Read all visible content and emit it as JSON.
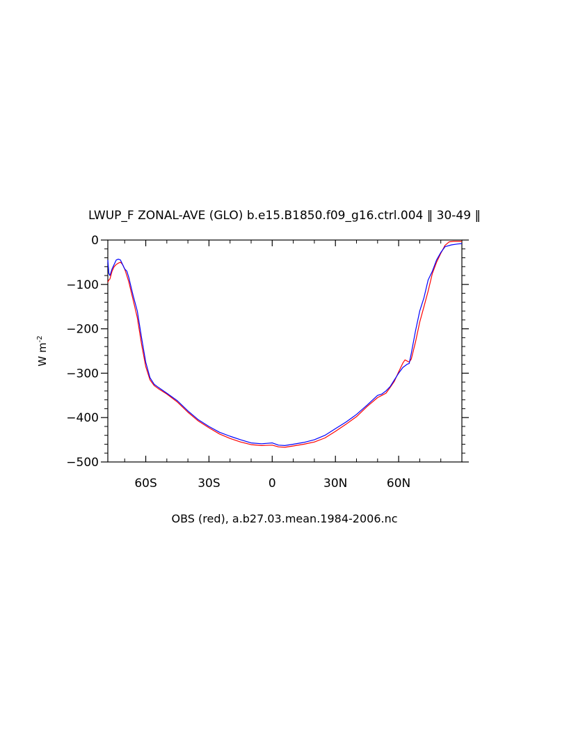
{
  "chart_data": {
    "type": "line",
    "title": "LWUP_F ZONAL-AVE (GLO) b.e15.B1850.f09_g16.ctrl.004 ‖ 30-49 ‖",
    "caption": "OBS (red), a.b27.03.mean.1984-2006.nc",
    "ylabel": "W m",
    "ylabel_superscript": "-2",
    "xlim": [
      -78,
      90
    ],
    "ylim": [
      -500,
      0
    ],
    "x_ticks": [
      -60,
      -30,
      0,
      30,
      60
    ],
    "x_tick_labels": [
      "60S",
      "30S",
      "0",
      "30N",
      "60N"
    ],
    "y_ticks": [
      0,
      -100,
      -200,
      -300,
      -400,
      -500
    ],
    "y_tick_labels": [
      "0",
      "−100",
      "−200",
      "−300",
      "−400",
      "−500"
    ],
    "colors": {
      "model": "#0000ff",
      "obs": "#ff0000"
    },
    "series": [
      {
        "key": "model",
        "color": "#0000ff",
        "x": [
          -78,
          -77.5,
          -77,
          -76,
          -75,
          -74,
          -73,
          -72,
          -71,
          -70,
          -69,
          -68,
          -67,
          -66,
          -64,
          -62,
          -60,
          -58,
          -56,
          -54,
          -50,
          -45,
          -40,
          -35,
          -30,
          -25,
          -20,
          -15,
          -10,
          -5,
          0,
          3,
          6,
          10,
          15,
          20,
          25,
          30,
          35,
          40,
          45,
          50,
          52,
          54,
          56,
          58,
          60,
          62,
          64,
          65,
          66,
          68,
          70,
          72,
          74,
          76,
          78,
          80,
          82,
          85,
          88,
          90
        ],
        "y": [
          -45,
          -75,
          -80,
          -65,
          -55,
          -45,
          -43,
          -45,
          -55,
          -65,
          -70,
          -85,
          -105,
          -125,
          -160,
          -220,
          -275,
          -310,
          -325,
          -332,
          -345,
          -362,
          -385,
          -405,
          -420,
          -433,
          -442,
          -450,
          -457,
          -459,
          -457,
          -462,
          -463,
          -460,
          -456,
          -450,
          -440,
          -425,
          -410,
          -393,
          -372,
          -350,
          -347,
          -340,
          -330,
          -315,
          -300,
          -287,
          -280,
          -278,
          -255,
          -205,
          -160,
          -130,
          -90,
          -70,
          -45,
          -28,
          -15,
          -11,
          -9,
          -8
        ]
      },
      {
        "key": "obs",
        "color": "#ff0000",
        "x": [
          -78,
          -77.5,
          -77,
          -76,
          -75,
          -74,
          -73,
          -72,
          -71,
          -70,
          -69,
          -68,
          -67,
          -66,
          -64,
          -62,
          -60,
          -58,
          -56,
          -54,
          -50,
          -45,
          -40,
          -35,
          -30,
          -25,
          -20,
          -15,
          -10,
          -5,
          0,
          3,
          6,
          10,
          15,
          20,
          25,
          30,
          35,
          40,
          45,
          50,
          52,
          54,
          56,
          58,
          60,
          62,
          63,
          65,
          66,
          68,
          70,
          72,
          74,
          76,
          78,
          80,
          82,
          84,
          86,
          88,
          90
        ],
        "y": [
          -95,
          -90,
          -88,
          -70,
          -60,
          -55,
          -52,
          -50,
          -55,
          -65,
          -80,
          -95,
          -115,
          -135,
          -175,
          -235,
          -285,
          -315,
          -328,
          -335,
          -347,
          -365,
          -388,
          -408,
          -423,
          -437,
          -447,
          -455,
          -461,
          -463,
          -462,
          -466,
          -467,
          -464,
          -460,
          -455,
          -446,
          -431,
          -415,
          -398,
          -375,
          -355,
          -350,
          -345,
          -332,
          -318,
          -297,
          -277,
          -270,
          -275,
          -268,
          -230,
          -185,
          -150,
          -115,
          -75,
          -50,
          -30,
          -12,
          -4,
          -3,
          -3,
          -3
        ]
      }
    ]
  }
}
